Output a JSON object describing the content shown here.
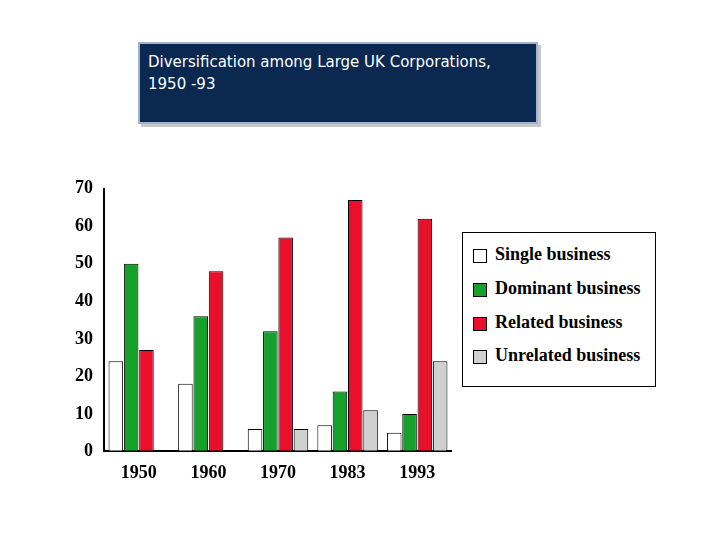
{
  "chart_data": {
    "type": "bar",
    "title": "Diversification among Large UK Corporations, 1950 -93",
    "categories": [
      "1950",
      "1960",
      "1970",
      "1983",
      "1993"
    ],
    "series": [
      {
        "name": "Single business",
        "color": "#ffffff",
        "values": [
          24,
          18,
          6,
          7,
          5
        ]
      },
      {
        "name": "Dominant business",
        "color": "#16a02c",
        "values": [
          50,
          36,
          32,
          16,
          10
        ]
      },
      {
        "name": "Related business",
        "color": "#e8102a",
        "values": [
          27,
          48,
          57,
          67,
          62
        ]
      },
      {
        "name": "Unrelated business",
        "color": "#d0d0d0",
        "values": [
          0,
          0,
          6,
          11,
          24
        ]
      }
    ],
    "ylim": [
      0,
      70
    ],
    "yticks": [
      0,
      10,
      20,
      30,
      40,
      50,
      60,
      70
    ],
    "grid": false,
    "legend": "right"
  }
}
